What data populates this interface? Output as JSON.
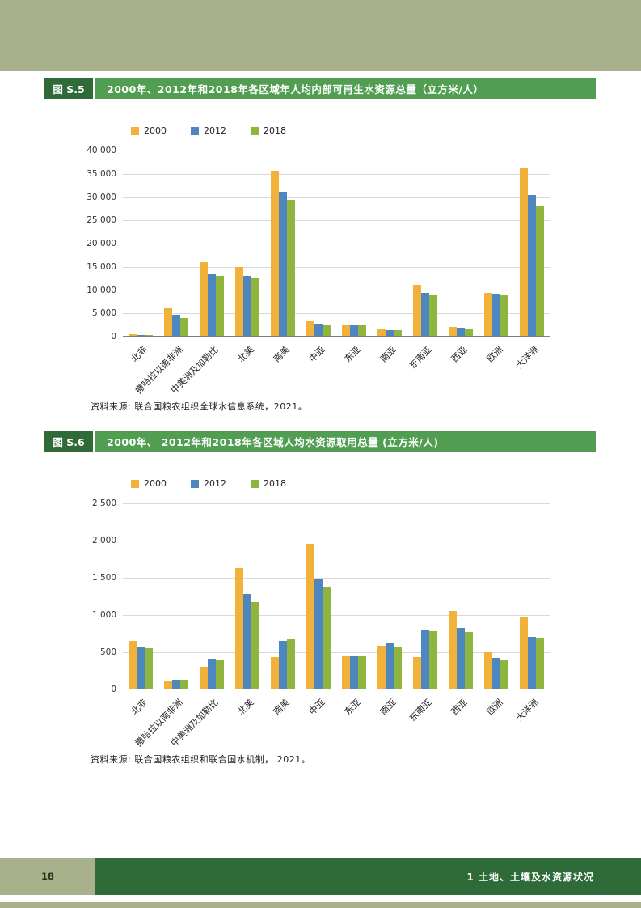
{
  "page": {
    "page_number": "18",
    "footer_title": "1 土地、土壤及水资源状况"
  },
  "colors": {
    "top_band": "#a9b18c",
    "figure_label_bg": "#2f6b38",
    "figure_title_bg": "#519e52",
    "footer_bg": "#2f6b38",
    "footer_page_bg": "#a9b18c",
    "bottom_strip": "#a9b18c"
  },
  "chart_data": [
    {
      "type": "bar",
      "figure_label": "图 S.5",
      "title": "2000年、2012年和2018年各区域年人均内部可再生水资源总量（立方米/人）",
      "source": "资料来源:  联合国粮农组织全球水信息系统，2021。",
      "categories": [
        "北非",
        "撒哈拉以南非洲",
        "中美洲及加勒比",
        "北美",
        "南美",
        "中亚",
        "东亚",
        "南亚",
        "东南亚",
        "西亚",
        "欧洲",
        "大洋洲"
      ],
      "series": [
        {
          "name": "2000",
          "color": "#f2b138",
          "values": [
            300,
            6100,
            15800,
            14700,
            35500,
            3200,
            2300,
            1400,
            11000,
            2000,
            9200,
            36000
          ]
        },
        {
          "name": "2012",
          "color": "#4e86c0",
          "values": [
            260,
            4500,
            13400,
            12900,
            31000,
            2600,
            2300,
            1250,
            9300,
            1700,
            9000,
            30200
          ]
        },
        {
          "name": "2018",
          "color": "#8eb63e",
          "values": [
            240,
            3900,
            12900,
            12600,
            29300,
            2400,
            2200,
            1200,
            8800,
            1500,
            8900,
            27800
          ]
        }
      ],
      "ylim": [
        0,
        40000
      ],
      "ytick_values": [
        0,
        5000,
        10000,
        15000,
        20000,
        25000,
        30000,
        35000,
        40000
      ],
      "ytick_labels": [
        "0",
        "5 000",
        "10 000",
        "15 000",
        "20 000",
        "25 000",
        "30 000",
        "35 000",
        "40 000"
      ],
      "grid": true,
      "legend_position": "top-left"
    },
    {
      "type": "bar",
      "figure_label": "图 S.6",
      "title": "2000年、 2012年和2018年各区域人均水资源取用总量 (立方米/人)",
      "source": "资料来源: 联合国粮农组织和联合国水机制， 2021。",
      "categories": [
        "北非",
        "撒哈拉以南非洲",
        "中美洲及加勒比",
        "北美",
        "南美",
        "中亚",
        "东亚",
        "南亚",
        "东南亚",
        "西亚",
        "欧洲",
        "大洋洲"
      ],
      "series": [
        {
          "name": "2000",
          "color": "#f2b138",
          "values": [
            640,
            110,
            290,
            1620,
            420,
            1950,
            440,
            580,
            420,
            1040,
            490,
            960
          ]
        },
        {
          "name": "2012",
          "color": "#4e86c0",
          "values": [
            560,
            125,
            405,
            1270,
            640,
            1470,
            445,
            605,
            780,
            820,
            415,
            700
          ]
        },
        {
          "name": "2018",
          "color": "#8eb63e",
          "values": [
            545,
            120,
            395,
            1160,
            670,
            1370,
            430,
            560,
            770,
            760,
            390,
            680
          ]
        }
      ],
      "ylim": [
        0,
        2500
      ],
      "ytick_values": [
        0,
        500,
        1000,
        1500,
        2000,
        2500
      ],
      "ytick_labels": [
        "0",
        "500",
        "1 000",
        "1 500",
        "2 000",
        "2 500"
      ],
      "grid": true,
      "legend_position": "top-left"
    }
  ]
}
